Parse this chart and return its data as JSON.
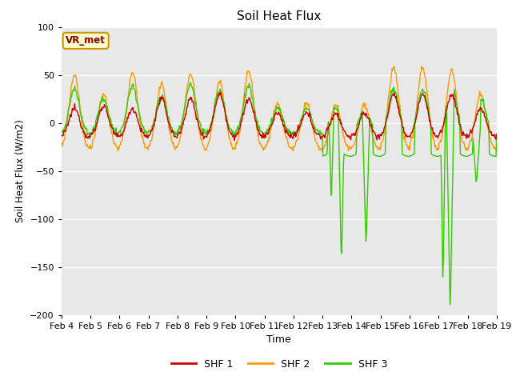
{
  "title": "Soil Heat Flux",
  "ylabel": "Soil Heat Flux (W/m2)",
  "xlabel": "Time",
  "ylim": [
    -200,
    100
  ],
  "background_color": "#e8e8e8",
  "grid_color": "white",
  "colors": {
    "SHF 1": "#cc0000",
    "SHF 2": "#ff9900",
    "SHF 3": "#33cc00"
  },
  "legend_labels": [
    "SHF 1",
    "SHF 2",
    "SHF 3"
  ],
  "annotation_text": "VR_met",
  "annotation_facecolor": "#ffffcc",
  "annotation_edgecolor": "#cc9900",
  "n_days": 15,
  "start_day": 4,
  "start_month": "Feb"
}
